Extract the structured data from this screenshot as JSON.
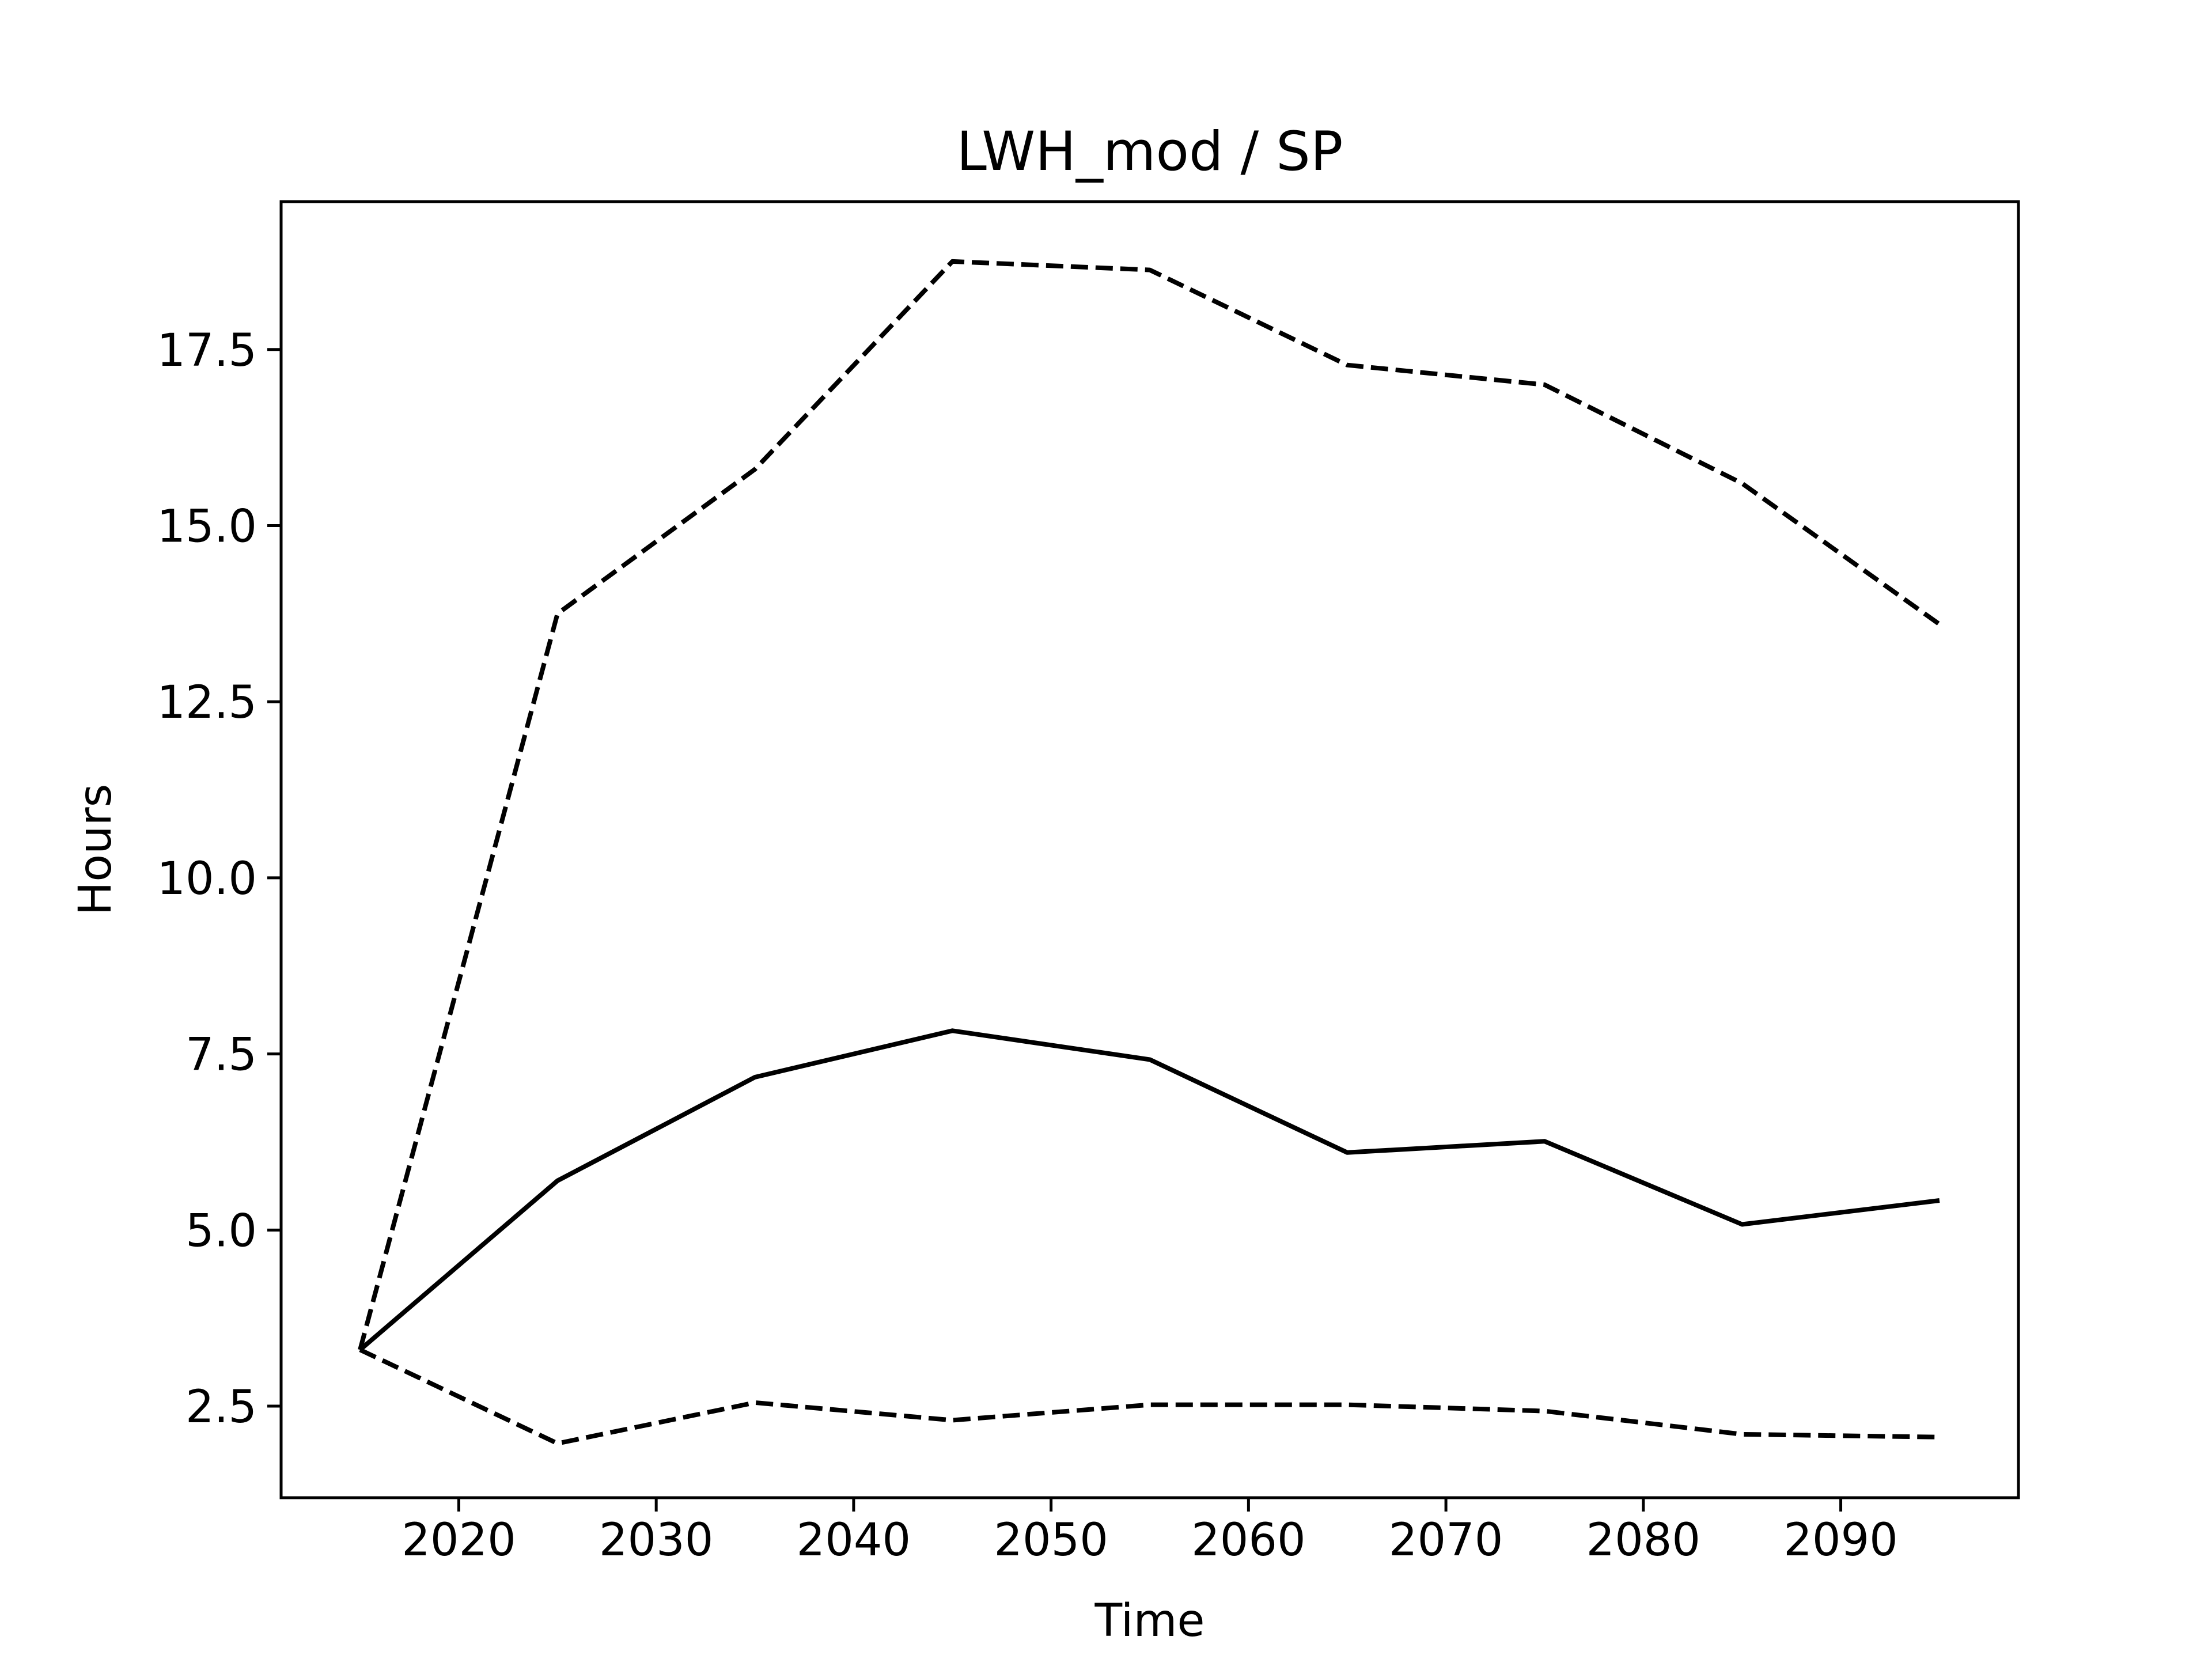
{
  "chart_data": {
    "type": "line",
    "title": "LWH_mod / SP",
    "xlabel": "Time",
    "ylabel": "Hours",
    "xlim": [
      2011,
      2099
    ],
    "ylim": [
      1.2,
      19.6
    ],
    "xticks": [
      2020,
      2030,
      2040,
      2050,
      2060,
      2070,
      2080,
      2090
    ],
    "yticks": [
      2.5,
      5.0,
      7.5,
      10.0,
      12.5,
      15.0,
      17.5
    ],
    "ytick_labels": [
      "2.5",
      "5.0",
      "7.5",
      "10.0",
      "12.5",
      "15.0",
      "17.5"
    ],
    "grid": false,
    "legend": "none",
    "x": [
      2015,
      2025,
      2035,
      2045,
      2055,
      2065,
      2075,
      2085,
      2095
    ],
    "series": [
      {
        "style": "solid",
        "color": "#000000",
        "values": [
          3.3,
          5.7,
          7.17,
          7.83,
          7.42,
          6.1,
          6.26,
          5.08,
          5.42
        ]
      },
      {
        "style": "dashed",
        "color": "#000000",
        "values": [
          3.3,
          13.75,
          15.8,
          18.75,
          18.63,
          17.28,
          17.0,
          15.6,
          13.6
        ]
      },
      {
        "style": "dashed",
        "color": "#000000",
        "values": [
          3.3,
          1.97,
          2.55,
          2.3,
          2.52,
          2.52,
          2.43,
          2.1,
          2.06
        ]
      }
    ]
  }
}
